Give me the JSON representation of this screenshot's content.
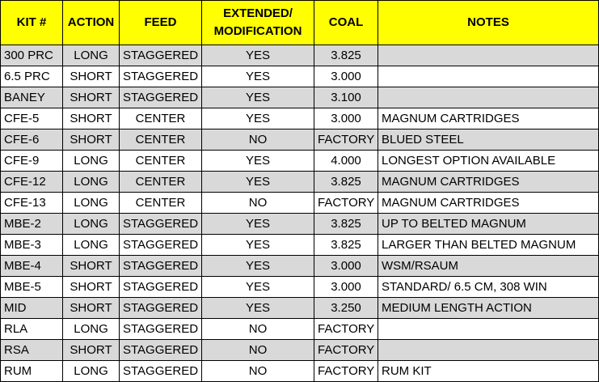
{
  "headers": [
    "KIT #",
    "ACTION",
    "FEED",
    "EXTENDED/\nMODIFICATION",
    "COAL",
    "NOTES"
  ],
  "rows": [
    {
      "kit": "300 PRC",
      "action": "LONG",
      "feed": "STAGGERED",
      "extended": "YES",
      "coal": "3.825",
      "notes": ""
    },
    {
      "kit": "6.5 PRC",
      "action": "SHORT",
      "feed": "STAGGERED",
      "extended": "YES",
      "coal": "3.000",
      "notes": ""
    },
    {
      "kit": "BANEY",
      "action": "SHORT",
      "feed": "STAGGERED",
      "extended": "YES",
      "coal": "3.100",
      "notes": ""
    },
    {
      "kit": "CFE-5",
      "action": "SHORT",
      "feed": "CENTER",
      "extended": "YES",
      "coal": "3.000",
      "notes": "MAGNUM CARTRIDGES"
    },
    {
      "kit": "CFE-6",
      "action": "SHORT",
      "feed": "CENTER",
      "extended": "NO",
      "coal": "FACTORY",
      "notes": "BLUED STEEL"
    },
    {
      "kit": "CFE-9",
      "action": "LONG",
      "feed": "CENTER",
      "extended": "YES",
      "coal": "4.000",
      "notes": "LONGEST OPTION AVAILABLE"
    },
    {
      "kit": "CFE-12",
      "action": "LONG",
      "feed": "CENTER",
      "extended": "YES",
      "coal": "3.825",
      "notes": "MAGNUM CARTRIDGES"
    },
    {
      "kit": "CFE-13",
      "action": "LONG",
      "feed": "CENTER",
      "extended": "NO",
      "coal": "FACTORY",
      "notes": "MAGNUM CARTRIDGES"
    },
    {
      "kit": "MBE-2",
      "action": "LONG",
      "feed": "STAGGERED",
      "extended": "YES",
      "coal": "3.825",
      "notes": "UP TO BELTED MAGNUM"
    },
    {
      "kit": "MBE-3",
      "action": "LONG",
      "feed": "STAGGERED",
      "extended": "YES",
      "coal": "3.825",
      "notes": "LARGER THAN BELTED MAGNUM"
    },
    {
      "kit": "MBE-4",
      "action": "SHORT",
      "feed": "STAGGERED",
      "extended": "YES",
      "coal": "3.000",
      "notes": "WSM/RSAUM"
    },
    {
      "kit": "MBE-5",
      "action": "SHORT",
      "feed": "STAGGERED",
      "extended": "YES",
      "coal": "3.000",
      "notes": "STANDARD/ 6.5 CM, 308 WIN"
    },
    {
      "kit": "MID",
      "action": "SHORT",
      "feed": "STAGGERED",
      "extended": "YES",
      "coal": "3.250",
      "notes": "MEDIUM LENGTH ACTION"
    },
    {
      "kit": "RLA",
      "action": "LONG",
      "feed": "STAGGERED",
      "extended": "NO",
      "coal": "FACTORY",
      "notes": ""
    },
    {
      "kit": "RSA",
      "action": "SHORT",
      "feed": "STAGGERED",
      "extended": "NO",
      "coal": "FACTORY",
      "notes": ""
    },
    {
      "kit": "RUM",
      "action": "LONG",
      "feed": "STAGGERED",
      "extended": "NO",
      "coal": "FACTORY",
      "notes": "RUM KIT"
    }
  ],
  "colors": {
    "header_bg": "#ffff00",
    "shade_bg": "#d9d9d9"
  }
}
